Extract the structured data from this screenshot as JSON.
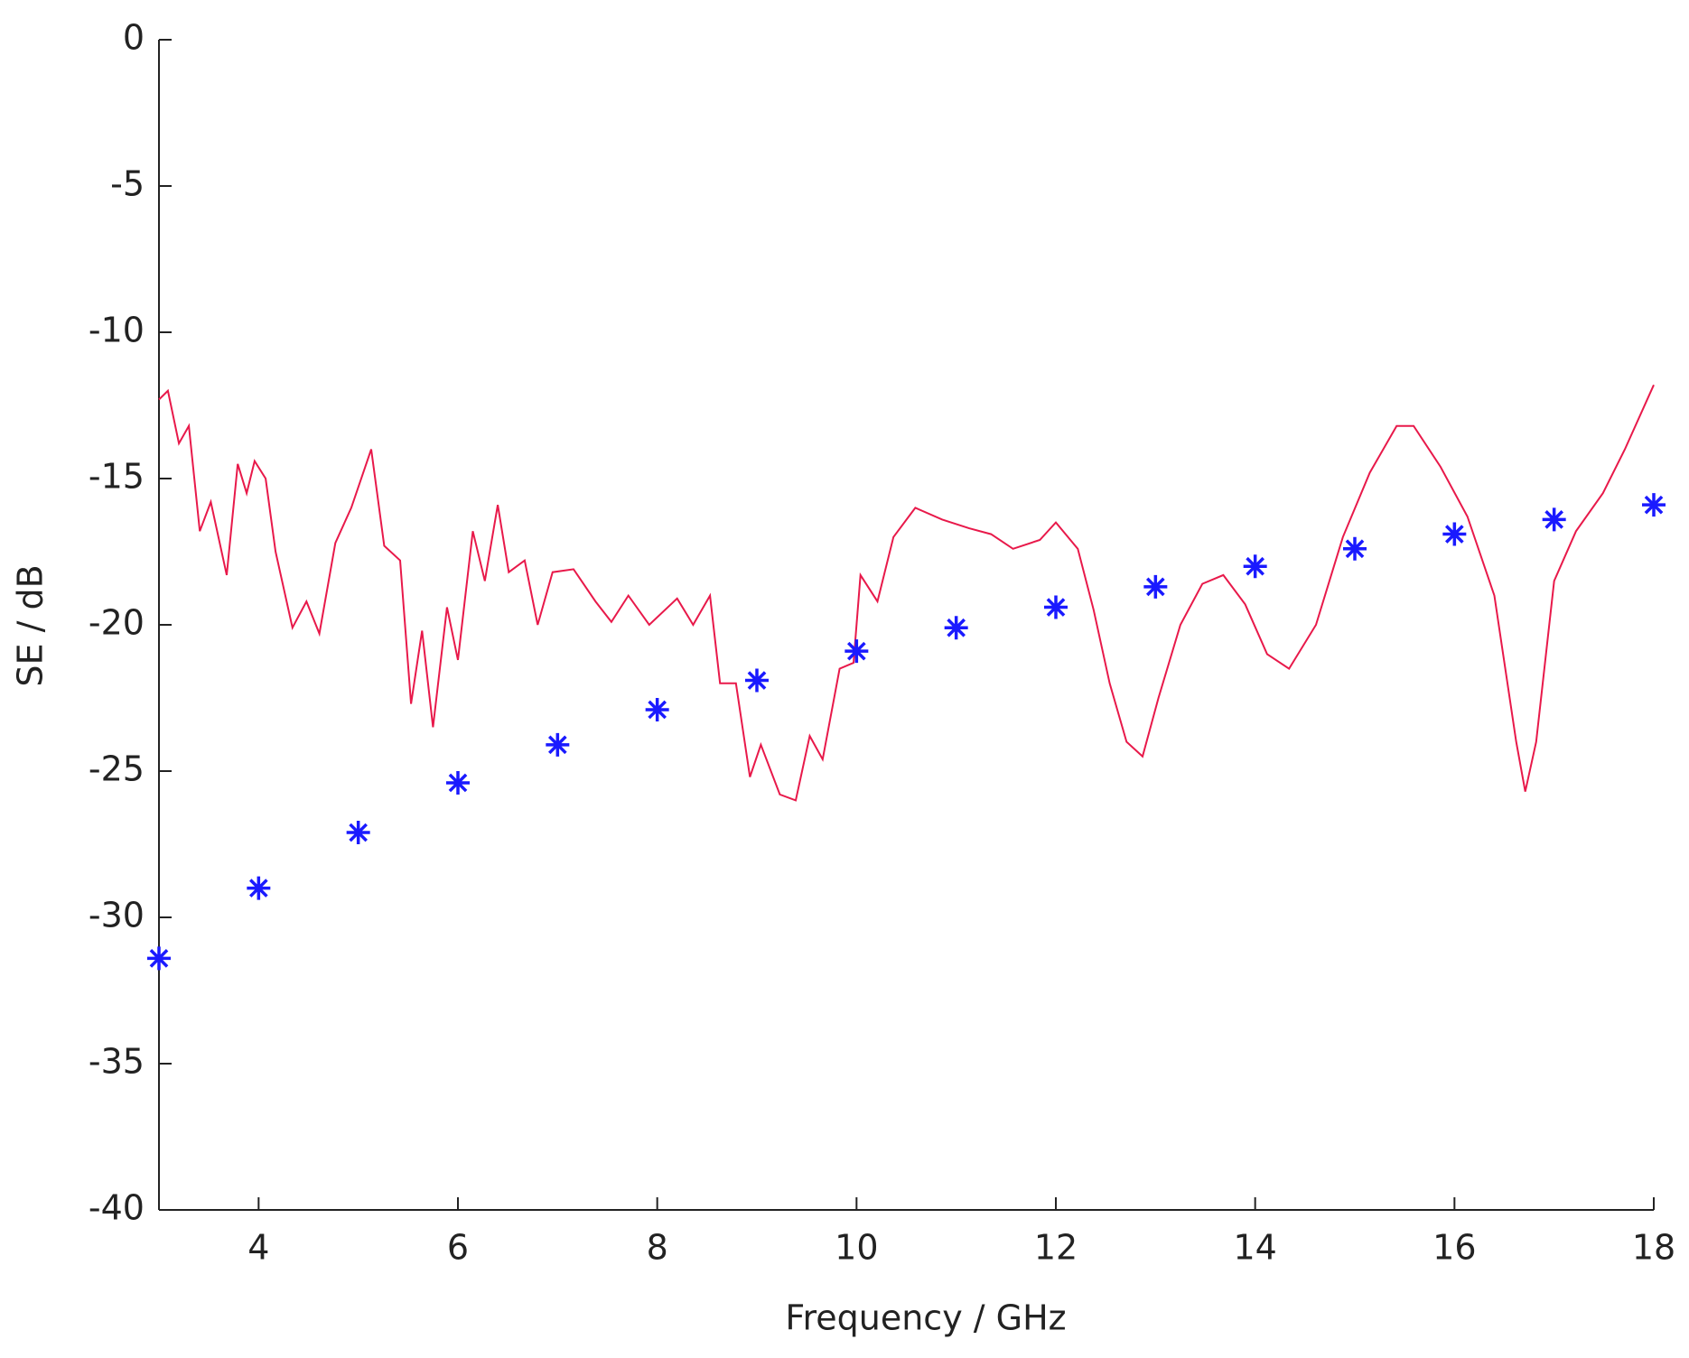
{
  "chart_data": {
    "type": "line",
    "xlabel": "Frequency  / GHz",
    "ylabel": "SE / dB",
    "xlim": [
      3,
      18
    ],
    "xticks": [
      4,
      6,
      8,
      10,
      12,
      14,
      16,
      18
    ],
    "ylim": [
      -40,
      0
    ],
    "yticks": [
      0,
      -5,
      -10,
      -15,
      -20,
      -25,
      -30,
      -35,
      -40
    ],
    "series": [
      {
        "type": "line",
        "color": "#e8194a",
        "x": [
          3.0,
          3.09,
          3.2,
          3.3,
          3.41,
          3.52,
          3.68,
          3.79,
          3.88,
          3.96,
          4.07,
          4.17,
          4.34,
          4.48,
          4.61,
          4.77,
          4.93,
          5.13,
          5.26,
          5.42,
          5.53,
          5.64,
          5.75,
          5.89,
          6.0,
          6.15,
          6.27,
          6.4,
          6.51,
          6.67,
          6.8,
          6.95,
          7.16,
          7.38,
          7.54,
          7.71,
          7.92,
          8.2,
          8.36,
          8.53,
          8.63,
          8.79,
          8.93,
          9.04,
          9.23,
          9.39,
          9.53,
          9.66,
          9.83,
          9.97,
          10.04,
          10.21,
          10.37,
          10.59,
          10.86,
          11.13,
          11.35,
          11.57,
          11.84,
          12.0,
          12.22,
          12.38,
          12.54,
          12.71,
          12.87,
          13.03,
          13.25,
          13.47,
          13.68,
          13.9,
          14.12,
          14.34,
          14.61,
          14.88,
          15.15,
          15.42,
          15.59,
          15.86,
          16.13,
          16.4,
          16.62,
          16.71,
          16.82,
          17.0,
          17.22,
          17.49,
          17.71,
          18.0
        ],
        "values": [
          -12.3,
          -12.0,
          -13.8,
          -13.2,
          -16.8,
          -15.8,
          -18.3,
          -14.5,
          -15.5,
          -14.4,
          -15.0,
          -17.5,
          -20.1,
          -19.2,
          -20.3,
          -17.2,
          -16.0,
          -14.0,
          -17.3,
          -17.8,
          -22.7,
          -20.2,
          -23.5,
          -19.4,
          -21.2,
          -16.8,
          -18.5,
          -15.9,
          -18.2,
          -17.8,
          -20.0,
          -18.2,
          -18.1,
          -19.2,
          -19.9,
          -19.0,
          -20.0,
          -19.1,
          -20.0,
          -19.0,
          -22.0,
          -22.0,
          -25.2,
          -24.1,
          -25.8,
          -26.0,
          -23.8,
          -24.6,
          -21.5,
          -21.3,
          -18.3,
          -19.2,
          -17.0,
          -16.0,
          -16.4,
          -16.7,
          -16.9,
          -17.4,
          -17.1,
          -16.5,
          -17.4,
          -19.5,
          -22.0,
          -24.0,
          -24.5,
          -22.5,
          -20.0,
          -18.6,
          -18.3,
          -19.3,
          -21.0,
          -21.5,
          -20.0,
          -17.0,
          -14.8,
          -13.2,
          -13.2,
          -14.6,
          -16.3,
          -19.0,
          -24.0,
          -25.7,
          -24.0,
          -18.5,
          -16.8,
          -15.5,
          -14.0,
          -11.8
        ]
      },
      {
        "type": "scatter",
        "marker": "asterisk",
        "color": "#1a1aff",
        "x": [
          3,
          4,
          5,
          6,
          7,
          8,
          9,
          10,
          11,
          12,
          13,
          14,
          15,
          16,
          17,
          18
        ],
        "values": [
          -31.4,
          -29.0,
          -27.1,
          -25.4,
          -24.1,
          -22.9,
          -21.9,
          -20.9,
          -20.1,
          -19.4,
          -18.7,
          -18.0,
          -17.4,
          -16.9,
          -16.4,
          -15.9
        ]
      }
    ]
  }
}
